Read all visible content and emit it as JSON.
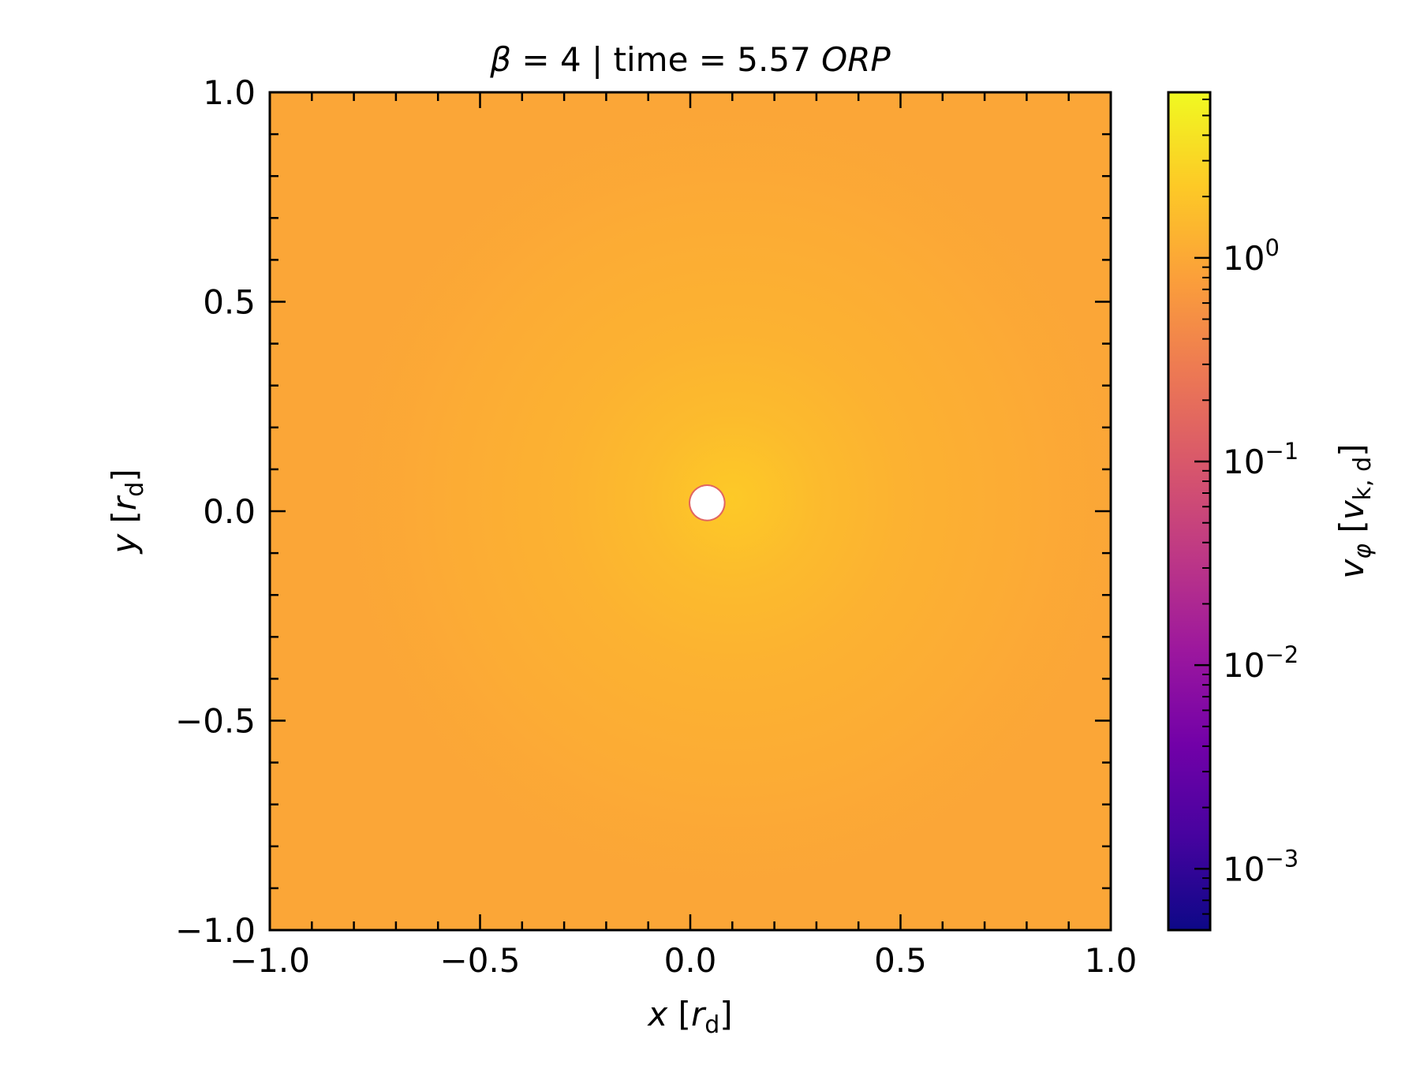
{
  "chart_data": {
    "type": "heatmap",
    "title": {
      "beta_symbol": "β",
      "beta_eq": " = 4 | time = 5.57 ",
      "unit": "ORP"
    },
    "xlabel": {
      "var": "x",
      "open": " [",
      "r": "r",
      "sub": "d",
      "close": "]"
    },
    "ylabel": {
      "var": "y",
      "open": " [",
      "r": "r",
      "sub": "d",
      "close": "]"
    },
    "xlim": [
      -1.0,
      1.0
    ],
    "ylim": [
      -1.0,
      1.0
    ],
    "xticks": [
      {
        "value": -1.0,
        "label": "−1.0"
      },
      {
        "value": -0.5,
        "label": "−0.5"
      },
      {
        "value": 0.0,
        "label": "0.0"
      },
      {
        "value": 0.5,
        "label": "0.5"
      },
      {
        "value": 1.0,
        "label": "1.0"
      }
    ],
    "yticks": [
      {
        "value": -1.0,
        "label": "−1.0"
      },
      {
        "value": -0.5,
        "label": "−0.5"
      },
      {
        "value": 0.0,
        "label": "0.0"
      },
      {
        "value": 0.5,
        "label": "0.5"
      },
      {
        "value": 1.0,
        "label": "1.0"
      }
    ],
    "minor_tick_step": 0.1,
    "field": {
      "background_value": 0.95,
      "peak_value": 2.2,
      "peak_center": [
        0.1,
        0.03
      ],
      "excised_center": [
        0.04,
        0.02
      ],
      "excised_radius": 0.04
    },
    "colorbar": {
      "scale": "log",
      "colormap": "plasma",
      "vmin": 0.0005,
      "vmax": 6.5,
      "ticks": [
        {
          "value": 1,
          "base": "10",
          "exp": "0"
        },
        {
          "value": 0.1,
          "base": "10",
          "exp": "−1"
        },
        {
          "value": 0.01,
          "base": "10",
          "exp": "−2"
        },
        {
          "value": 0.001,
          "base": "10",
          "exp": "−3"
        }
      ],
      "label": {
        "var": "v",
        "var_sub": "φ",
        "open": " [",
        "unit": "v",
        "unit_sub": "k, d",
        "close": "]"
      }
    },
    "colors": {
      "plasma": [
        "#0d0887",
        "#46039f",
        "#7201a8",
        "#9c179e",
        "#bd3786",
        "#d8576b",
        "#ed7953",
        "#fb9f3a",
        "#fdca26",
        "#f0f921"
      ],
      "hole": "#ffffff",
      "frame": "#000000"
    },
    "grid": false,
    "legend": "none"
  }
}
